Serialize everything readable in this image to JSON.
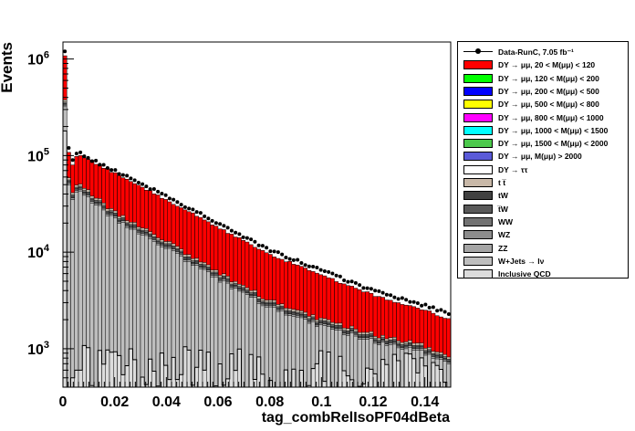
{
  "chart_data": {
    "type": "histogram",
    "xlabel": "tag_combRelIsoPF04dBeta",
    "ylabel": "Events",
    "xlim": [
      0,
      0.15
    ],
    "ylim": [
      400,
      1500000
    ],
    "yscale": "log",
    "x_ticks": [
      "0",
      "0.02",
      "0.04",
      "0.06",
      "0.08",
      "0.1",
      "0.12",
      "0.14"
    ],
    "x_tick_values": [
      0,
      0.02,
      0.04,
      0.06,
      0.08,
      0.1,
      0.12,
      0.14
    ],
    "y_tick_values": [
      1000,
      10000,
      100000,
      1000000
    ],
    "y_ticks": [
      {
        "base": "10",
        "exp": "3"
      },
      {
        "base": "10",
        "exp": "4"
      },
      {
        "base": "10",
        "exp": "5"
      },
      {
        "base": "10",
        "exp": "6"
      }
    ],
    "legend_placement": "right",
    "legend": [
      {
        "label": "Data-RunC, 7.05 fb⁻¹",
        "color": "#000000",
        "style": "marker"
      },
      {
        "label": "DY → μμ, 20 < M(μμ) <  120",
        "color": "#ff0000"
      },
      {
        "label": "DY → μμ, 120 < M(μμ) <  200",
        "color": "#00ff00"
      },
      {
        "label": "DY → μμ, 200 < M(μμ) <  500",
        "color": "#0000ff"
      },
      {
        "label": "DY → μμ, 500 < M(μμ) <  800",
        "color": "#ffff00"
      },
      {
        "label": "DY → μμ, 800 < M(μμ) < 1000",
        "color": "#ff00ff"
      },
      {
        "label": "DY → μμ, 1000 < M(μμ) < 1500",
        "color": "#00ffff"
      },
      {
        "label": "DY → μμ, 1500 < M(μμ) < 2000",
        "color": "#4cc94c"
      },
      {
        "label": "DY → μμ, M(μμ) > 2000",
        "color": "#5a5ad8"
      },
      {
        "label": "DY → ττ",
        "color": "#ffffff"
      },
      {
        "label": "t t̅",
        "color": "#c8b8a8"
      },
      {
        "label": "tW",
        "color": "#404040"
      },
      {
        "label": "t̅W",
        "color": "#595959"
      },
      {
        "label": "WW",
        "color": "#727272"
      },
      {
        "label": "WZ",
        "color": "#8c8c8c"
      },
      {
        "label": "ZZ",
        "color": "#a5a5a5"
      },
      {
        "label": "W+Jets → lν",
        "color": "#bebebe"
      },
      {
        "label": "Inclusive QCD",
        "color": "#dcdcdc"
      }
    ],
    "bin_width": 0.0015,
    "first_bins": {
      "x": [
        0.0,
        0.0015,
        0.003,
        0.0045,
        0.006
      ],
      "data": [
        1200000,
        120000,
        90000,
        105000,
        108000
      ],
      "dy_total": [
        1080000,
        108000,
        80000,
        98000,
        100000
      ],
      "wjets_total": [
        320000,
        50000,
        35000,
        42000,
        43000
      ],
      "qcd": [
        180000,
        400,
        500,
        600,
        600
      ]
    },
    "anchor_points": {
      "x": [
        0.0075,
        0.02,
        0.04,
        0.06,
        0.08,
        0.1,
        0.12,
        0.14,
        0.15
      ],
      "data": [
        100000,
        70000,
        38000,
        20000,
        10500,
        6500,
        4000,
        2800,
        2300
      ],
      "mc_total": [
        98000,
        66000,
        35000,
        18000,
        9500,
        5800,
        3600,
        2500,
        2000
      ],
      "wjets_total": [
        40000,
        22000,
        11000,
        5200,
        2700,
        1700,
        1200,
        900,
        700
      ],
      "qcd": [
        700,
        750,
        700,
        650,
        650,
        620,
        600,
        580,
        560
      ]
    },
    "series_order": [
      "Inclusive QCD",
      "W+Jets → lν",
      "ZZ",
      "WZ",
      "WW",
      "t̅W",
      "tW",
      "t t̅",
      "DY → ττ",
      "DY → μμ",
      "Data"
    ]
  }
}
